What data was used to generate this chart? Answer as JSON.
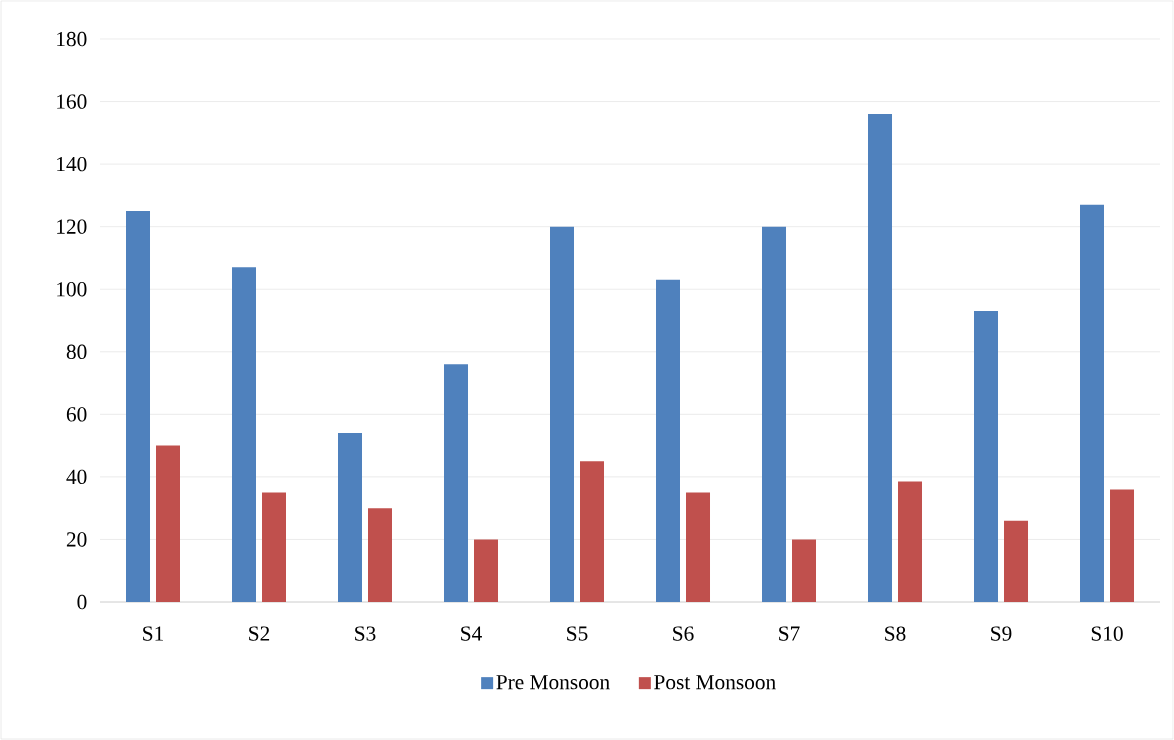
{
  "chart_data": {
    "type": "bar",
    "categories": [
      "S1",
      "S2",
      "S3",
      "S4",
      "S5",
      "S6",
      "S7",
      "S8",
      "S9",
      "S10"
    ],
    "series": [
      {
        "name": "Pre Monsoon",
        "color": "#4f81bd",
        "values": [
          125,
          107,
          54,
          76,
          120,
          103,
          120,
          156,
          93,
          127
        ]
      },
      {
        "name": "Post Monsoon",
        "color": "#c0504d",
        "values": [
          50,
          35,
          30,
          20,
          45,
          35,
          20,
          38.5,
          26,
          36
        ]
      }
    ],
    "ylim": [
      0,
      180
    ],
    "yticks": [
      0,
      20,
      40,
      60,
      80,
      100,
      120,
      140,
      160,
      180
    ],
    "grid": "y",
    "legend": "bottom"
  }
}
